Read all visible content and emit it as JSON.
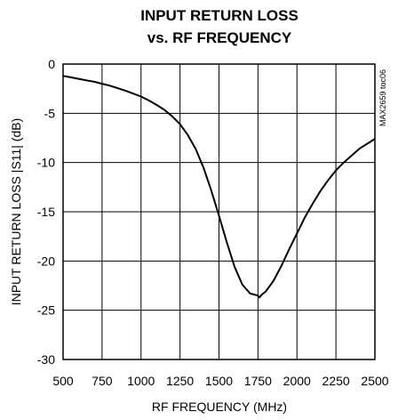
{
  "chart_data": {
    "type": "line",
    "title_line1": "INPUT RETURN LOSS",
    "title_line2": "vs. RF FREQUENCY",
    "xlabel": "RF FREQUENCY (MHz)",
    "ylabel": "INPUT RETURN LOSS |S11| (dB)",
    "side_id": "MAX2659 toc06",
    "xlim": [
      500,
      2500
    ],
    "ylim": [
      -30,
      0
    ],
    "x_ticks": [
      500,
      750,
      1000,
      1250,
      1500,
      1750,
      2000,
      2250,
      2500
    ],
    "y_ticks": [
      0,
      -5,
      -10,
      -15,
      -20,
      -25,
      -30
    ],
    "grid": true,
    "series": [
      {
        "x": [
          500,
          550,
          600,
          650,
          700,
          750,
          800,
          850,
          900,
          950,
          1000,
          1050,
          1100,
          1150,
          1200,
          1250,
          1300,
          1350,
          1400,
          1450,
          1500,
          1550,
          1600,
          1650,
          1700,
          1725,
          1750,
          1760,
          1775,
          1800,
          1850,
          1900,
          1950,
          2000,
          2050,
          2100,
          2150,
          2200,
          2250,
          2300,
          2350,
          2400,
          2450,
          2500
        ],
        "y": [
          -1.2,
          -1.35,
          -1.5,
          -1.65,
          -1.8,
          -2.0,
          -2.2,
          -2.45,
          -2.7,
          -3.0,
          -3.3,
          -3.7,
          -4.15,
          -4.65,
          -5.3,
          -6.1,
          -7.2,
          -8.6,
          -10.5,
          -12.8,
          -15.4,
          -18.1,
          -20.6,
          -22.4,
          -23.3,
          -23.4,
          -23.5,
          -23.7,
          -23.4,
          -23.1,
          -22.0,
          -20.5,
          -18.8,
          -17.2,
          -15.6,
          -14.2,
          -12.9,
          -11.8,
          -10.8,
          -10.0,
          -9.3,
          -8.6,
          -8.1,
          -7.6
        ]
      }
    ]
  }
}
